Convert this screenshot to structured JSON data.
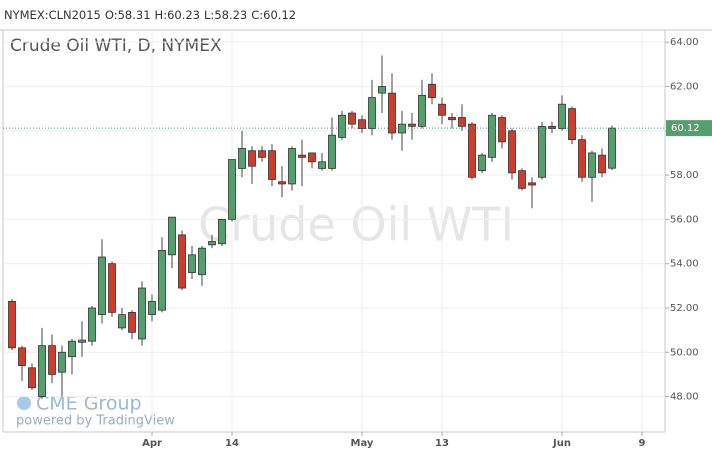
{
  "header": {
    "symbol": "NYMEX:CLN2015",
    "ohlc_labels": [
      "O:",
      "H:",
      "L:",
      "C:"
    ]
  },
  "chart_data": {
    "type": "candlestick",
    "title": "Crude Oil WTI, D, NYMEX",
    "watermark": "Crude Oil WTI",
    "brand": "CME Group",
    "brand_note": "powered by TradingView",
    "up_color": "#53a06d",
    "down_color": "#cd3d2e",
    "grid": true,
    "xlim": [
      -0.9,
      65.3
    ],
    "xticks": [
      {
        "value": 14,
        "label": "Apr"
      },
      {
        "value": 22,
        "label": "14"
      },
      {
        "value": 35,
        "label": "May"
      },
      {
        "value": 43,
        "label": "13"
      },
      {
        "value": 55,
        "label": "Jun"
      },
      {
        "value": 63,
        "label": "9"
      }
    ],
    "ylim": [
      46.4,
      64.55
    ],
    "yticks": [
      {
        "value": 48,
        "label": "48.00"
      },
      {
        "value": 50,
        "label": "50.00"
      },
      {
        "value": 52,
        "label": "52.00"
      },
      {
        "value": 54,
        "label": "54.00"
      },
      {
        "value": 56,
        "label": "56.00"
      },
      {
        "value": 58,
        "label": "58.00"
      },
      {
        "value": 60,
        "label": "60.00"
      },
      {
        "value": 62,
        "label": "62.00"
      },
      {
        "value": 64,
        "label": "64.00"
      }
    ],
    "open": [
      52.3,
      50.2,
      49.3,
      48.0,
      50.3,
      49.1,
      49.8,
      50.45,
      50.5,
      51.7,
      54.0,
      51.1,
      51.8,
      50.6,
      51.7,
      51.9,
      54.4,
      55.3,
      53.6,
      53.5,
      54.85,
      54.9,
      56.0,
      58.3,
      59.1,
      59.1,
      59.1,
      57.7,
      57.6,
      58.9,
      59.0,
      58.3,
      58.3,
      59.7,
      60.8,
      60.5,
      60.1,
      61.7,
      61.7,
      59.9,
      60.3,
      60.2,
      62.1,
      61.2,
      60.6,
      60.6,
      60.3,
      58.2,
      58.8,
      60.6,
      60.0,
      58.2,
      57.65,
      57.9,
      60.2,
      60.1,
      61.0,
      59.6,
      57.9,
      58.9,
      58.31
    ],
    "high": [
      52.4,
      50.3,
      49.5,
      51.1,
      50.8,
      50.3,
      50.6,
      51.4,
      52.1,
      55.1,
      54.1,
      52.0,
      51.9,
      53.2,
      52.6,
      55.2,
      56.1,
      55.5,
      54.8,
      54.8,
      55.3,
      56.0,
      58.7,
      60.0,
      59.3,
      59.3,
      59.4,
      58.4,
      59.3,
      59.6,
      59.0,
      59.0,
      60.6,
      60.9,
      60.9,
      60.7,
      62.3,
      63.4,
      62.6,
      60.9,
      60.8,
      62.3,
      62.6,
      61.5,
      60.8,
      61.2,
      60.4,
      59.0,
      60.8,
      60.7,
      60.1,
      58.3,
      57.9,
      60.4,
      60.4,
      61.6,
      61.1,
      59.8,
      59.1,
      59.2,
      60.23
    ],
    "low": [
      50.1,
      48.7,
      48.3,
      47.9,
      48.6,
      48.0,
      49.0,
      49.8,
      50.3,
      51.3,
      51.6,
      51.0,
      50.6,
      50.3,
      51.4,
      51.8,
      53.8,
      52.8,
      53.3,
      53.0,
      54.7,
      54.8,
      55.9,
      57.9,
      57.6,
      58.6,
      57.5,
      57.0,
      57.3,
      57.5,
      58.3,
      58.2,
      58.2,
      59.6,
      60.1,
      59.9,
      59.8,
      60.8,
      59.6,
      59.1,
      59.6,
      60.1,
      61.2,
      60.3,
      60.1,
      60.0,
      57.8,
      58.1,
      58.6,
      59.2,
      57.8,
      57.3,
      56.5,
      57.8,
      59.9,
      60.0,
      59.4,
      57.7,
      56.8,
      57.9,
      58.23
    ],
    "close": [
      50.2,
      49.4,
      48.4,
      50.3,
      49.0,
      50.0,
      50.5,
      50.55,
      52.0,
      54.3,
      51.8,
      51.7,
      50.9,
      52.9,
      52.3,
      54.6,
      56.1,
      52.9,
      54.4,
      54.7,
      55.0,
      56.0,
      58.7,
      59.2,
      58.4,
      58.8,
      57.8,
      57.6,
      59.2,
      58.8,
      58.6,
      58.6,
      59.8,
      60.7,
      60.3,
      60.1,
      61.5,
      62.0,
      59.9,
      60.3,
      60.2,
      61.6,
      61.5,
      60.7,
      60.5,
      60.2,
      57.9,
      58.9,
      60.7,
      59.5,
      58.1,
      57.4,
      57.55,
      60.2,
      60.1,
      61.2,
      59.6,
      57.9,
      59.0,
      58.1,
      60.12
    ]
  }
}
